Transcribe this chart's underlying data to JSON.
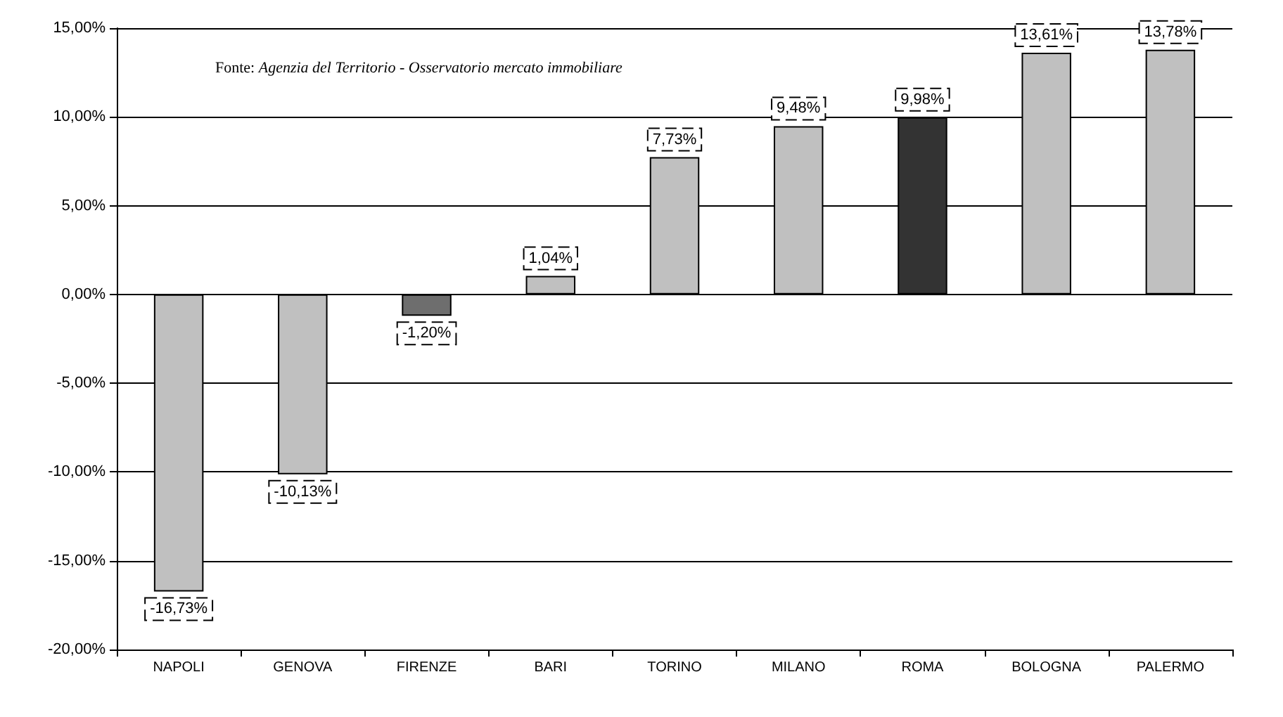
{
  "chart_data": {
    "type": "bar",
    "categories": [
      "NAPOLI",
      "GENOVA",
      "FIRENZE",
      "BARI",
      "TORINO",
      "MILANO",
      "ROMA",
      "BOLOGNA",
      "PALERMO"
    ],
    "values": [
      -16.73,
      -10.13,
      -1.2,
      1.04,
      7.73,
      9.48,
      9.98,
      13.61,
      13.78
    ],
    "colors": [
      "#c0c0c0",
      "#c0c0c0",
      "#6e6e6e",
      "#c0c0c0",
      "#c0c0c0",
      "#c0c0c0",
      "#333333",
      "#c0c0c0",
      "#c0c0c0"
    ],
    "value_labels": [
      "-16,73%",
      "-10,13%",
      "-1,20%",
      "1,04%",
      "7,73%",
      "9,48%",
      "9,98%",
      "13,61%",
      "13,78%"
    ],
    "ylim": [
      -20,
      15
    ],
    "yticks": [
      {
        "value": -20,
        "label": "-20,00%"
      },
      {
        "value": -15,
        "label": "-15,00%"
      },
      {
        "value": -10,
        "label": "-10,00%"
      },
      {
        "value": -5,
        "label": "-5,00%"
      },
      {
        "value": 0,
        "label": "0,00%"
      },
      {
        "value": 5,
        "label": "5,00%"
      },
      {
        "value": 10,
        "label": "10,00%"
      },
      {
        "value": 15,
        "label": "15,00%"
      }
    ],
    "grid": "y",
    "annotations": [
      "Fonte: Agenzia del Territorio - Osservatorio mercato immobiliare"
    ]
  }
}
